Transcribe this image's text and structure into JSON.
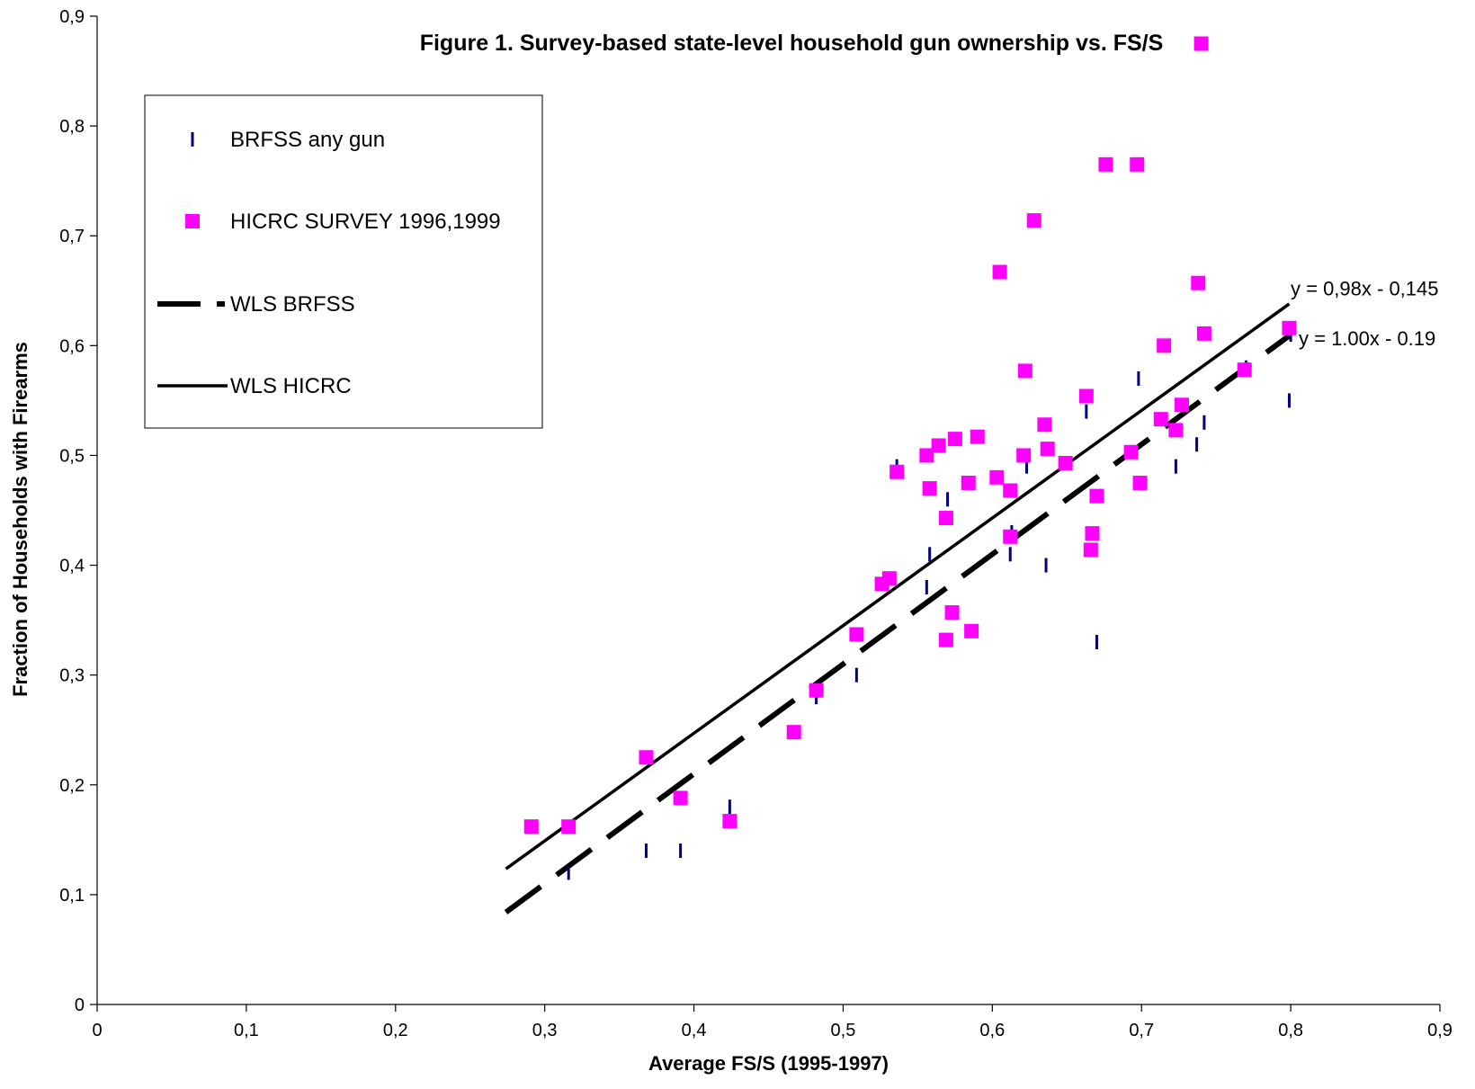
{
  "chart_data": {
    "type": "scatter",
    "title": "Figure 1. Survey-based state-level household gun ownership vs. FS/S",
    "xlabel": "Average FS/S (1995-1997)",
    "ylabel": "Fraction of Households with Firearms",
    "xlim": [
      0,
      0.9
    ],
    "ylim": [
      0,
      0.9
    ],
    "x_ticks": [
      "0",
      "0,1",
      "0,2",
      "0,3",
      "0,4",
      "0,5",
      "0,6",
      "0,7",
      "0,8",
      "0,9"
    ],
    "y_ticks": [
      "0",
      "0,1",
      "0,2",
      "0,3",
      "0,4",
      "0,5",
      "0,6",
      "0,7",
      "0,8",
      "0,9"
    ],
    "grid": false,
    "legend_position": "top-left",
    "series": [
      {
        "name": "BRFSS any gun",
        "marker": "dash",
        "color": "#000080",
        "points": [
          [
            0.316,
            0.12
          ],
          [
            0.368,
            0.14
          ],
          [
            0.391,
            0.14
          ],
          [
            0.424,
            0.18
          ],
          [
            0.482,
            0.28
          ],
          [
            0.509,
            0.3
          ],
          [
            0.536,
            0.49
          ],
          [
            0.556,
            0.38
          ],
          [
            0.558,
            0.41
          ],
          [
            0.57,
            0.46
          ],
          [
            0.612,
            0.41
          ],
          [
            0.613,
            0.43
          ],
          [
            0.623,
            0.49
          ],
          [
            0.636,
            0.4
          ],
          [
            0.663,
            0.54
          ],
          [
            0.67,
            0.33
          ],
          [
            0.698,
            0.57
          ],
          [
            0.723,
            0.49
          ],
          [
            0.737,
            0.51
          ],
          [
            0.742,
            0.53
          ],
          [
            0.77,
            0.58
          ],
          [
            0.799,
            0.55
          ],
          [
            0.8,
            0.61
          ]
        ]
      },
      {
        "name": "HICRC SURVEY 1996,1999",
        "marker": "square",
        "color": "#FF00FF",
        "points": [
          [
            0.291,
            0.162
          ],
          [
            0.316,
            0.162
          ],
          [
            0.368,
            0.225
          ],
          [
            0.391,
            0.188
          ],
          [
            0.424,
            0.167
          ],
          [
            0.467,
            0.248
          ],
          [
            0.482,
            0.286
          ],
          [
            0.509,
            0.337
          ],
          [
            0.526,
            0.383
          ],
          [
            0.531,
            0.388
          ],
          [
            0.536,
            0.485
          ],
          [
            0.556,
            0.5
          ],
          [
            0.558,
            0.47
          ],
          [
            0.564,
            0.509
          ],
          [
            0.569,
            0.443
          ],
          [
            0.569,
            0.332
          ],
          [
            0.573,
            0.357
          ],
          [
            0.575,
            0.515
          ],
          [
            0.584,
            0.475
          ],
          [
            0.586,
            0.34
          ],
          [
            0.59,
            0.517
          ],
          [
            0.603,
            0.48
          ],
          [
            0.605,
            0.667
          ],
          [
            0.612,
            0.468
          ],
          [
            0.612,
            0.426
          ],
          [
            0.621,
            0.5
          ],
          [
            0.622,
            0.577
          ],
          [
            0.628,
            0.714
          ],
          [
            0.635,
            0.528
          ],
          [
            0.637,
            0.506
          ],
          [
            0.649,
            0.493
          ],
          [
            0.663,
            0.554
          ],
          [
            0.666,
            0.414
          ],
          [
            0.667,
            0.429
          ],
          [
            0.67,
            0.463
          ],
          [
            0.676,
            0.765
          ],
          [
            0.693,
            0.503
          ],
          [
            0.697,
            0.765
          ],
          [
            0.699,
            0.475
          ],
          [
            0.713,
            0.533
          ],
          [
            0.715,
            0.6
          ],
          [
            0.723,
            0.523
          ],
          [
            0.727,
            0.546
          ],
          [
            0.738,
            0.657
          ],
          [
            0.742,
            0.611
          ],
          [
            0.74,
            0.875
          ],
          [
            0.769,
            0.578
          ],
          [
            0.799,
            0.616
          ]
        ]
      }
    ],
    "fits": [
      {
        "name": "WLS BRFSS",
        "style": "dashed",
        "slope": 1.0,
        "intercept": -0.19,
        "x_range": [
          0.274,
          0.799
        ],
        "equation": "y = 1.00x - 0.19"
      },
      {
        "name": "WLS HICRC",
        "style": "solid",
        "slope": 0.98,
        "intercept": -0.145,
        "x_range": [
          0.274,
          0.799
        ],
        "equation": "y = 0,98x - 0,145"
      }
    ],
    "colors": {
      "brfss": "#000080",
      "hicrc": "#FF00FF",
      "lines": "#000000"
    }
  }
}
